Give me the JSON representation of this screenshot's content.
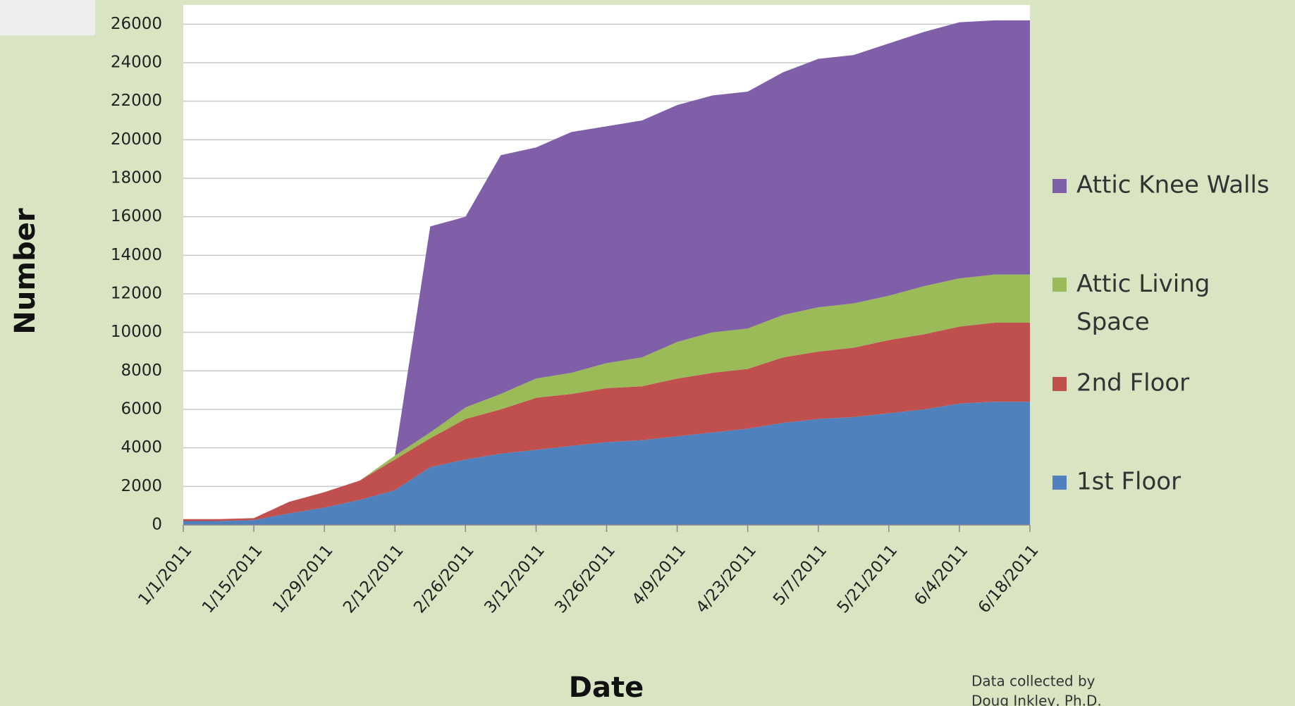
{
  "chart_data": {
    "type": "stacked-area",
    "x_label": "Date",
    "y_label": "Number",
    "note": [
      "Data collected  by",
      "Doug Inkley, Ph.D."
    ],
    "categories": [
      "1/1/2011",
      null,
      "1/15/2011",
      null,
      "1/29/2011",
      null,
      "2/12/2011",
      null,
      "2/26/2011",
      null,
      "3/12/2011",
      null,
      "3/26/2011",
      null,
      "4/9/2011",
      null,
      "4/23/2011",
      null,
      "5/7/2011",
      null,
      "5/21/2011",
      null,
      "6/4/2011",
      null,
      "6/18/2011"
    ],
    "series": [
      {
        "name": "1st Floor",
        "color": "#4f81bd",
        "values": [
          200,
          200,
          250,
          600,
          900,
          1300,
          1800,
          3000,
          3400,
          3700,
          3900,
          4100,
          4300,
          4400,
          4600,
          4800,
          5000,
          5300,
          5500,
          5600,
          5800,
          6000,
          6300,
          6400,
          6400
        ]
      },
      {
        "name": "2nd Floor",
        "color": "#c0504d",
        "values": [
          100,
          100,
          100,
          600,
          800,
          1000,
          1600,
          1500,
          2100,
          2300,
          2700,
          2700,
          2800,
          2800,
          3000,
          3100,
          3100,
          3400,
          3500,
          3600,
          3800,
          3900,
          4000,
          4100,
          4100
        ]
      },
      {
        "name": "Attic Living Space",
        "color": "#9bbb59",
        "values": [
          0,
          0,
          0,
          0,
          0,
          0,
          200,
          300,
          600,
          800,
          1000,
          1100,
          1300,
          1500,
          1900,
          2100,
          2100,
          2200,
          2300,
          2300,
          2300,
          2500,
          2500,
          2500,
          2500
        ]
      },
      {
        "name": "Attic Knee Walls",
        "color": "#7f5fa8",
        "values": [
          0,
          0,
          0,
          0,
          0,
          0,
          0,
          10700,
          9900,
          12400,
          12000,
          12500,
          12300,
          12300,
          12300,
          12300,
          12300,
          12600,
          12900,
          12900,
          13100,
          13200,
          13300,
          13200,
          13200
        ]
      }
    ],
    "ylim": [
      0,
      27000
    ],
    "yticks": [
      0,
      2000,
      4000,
      6000,
      8000,
      10000,
      12000,
      14000,
      16000,
      18000,
      20000,
      22000,
      24000,
      26000
    ],
    "grid": true
  }
}
